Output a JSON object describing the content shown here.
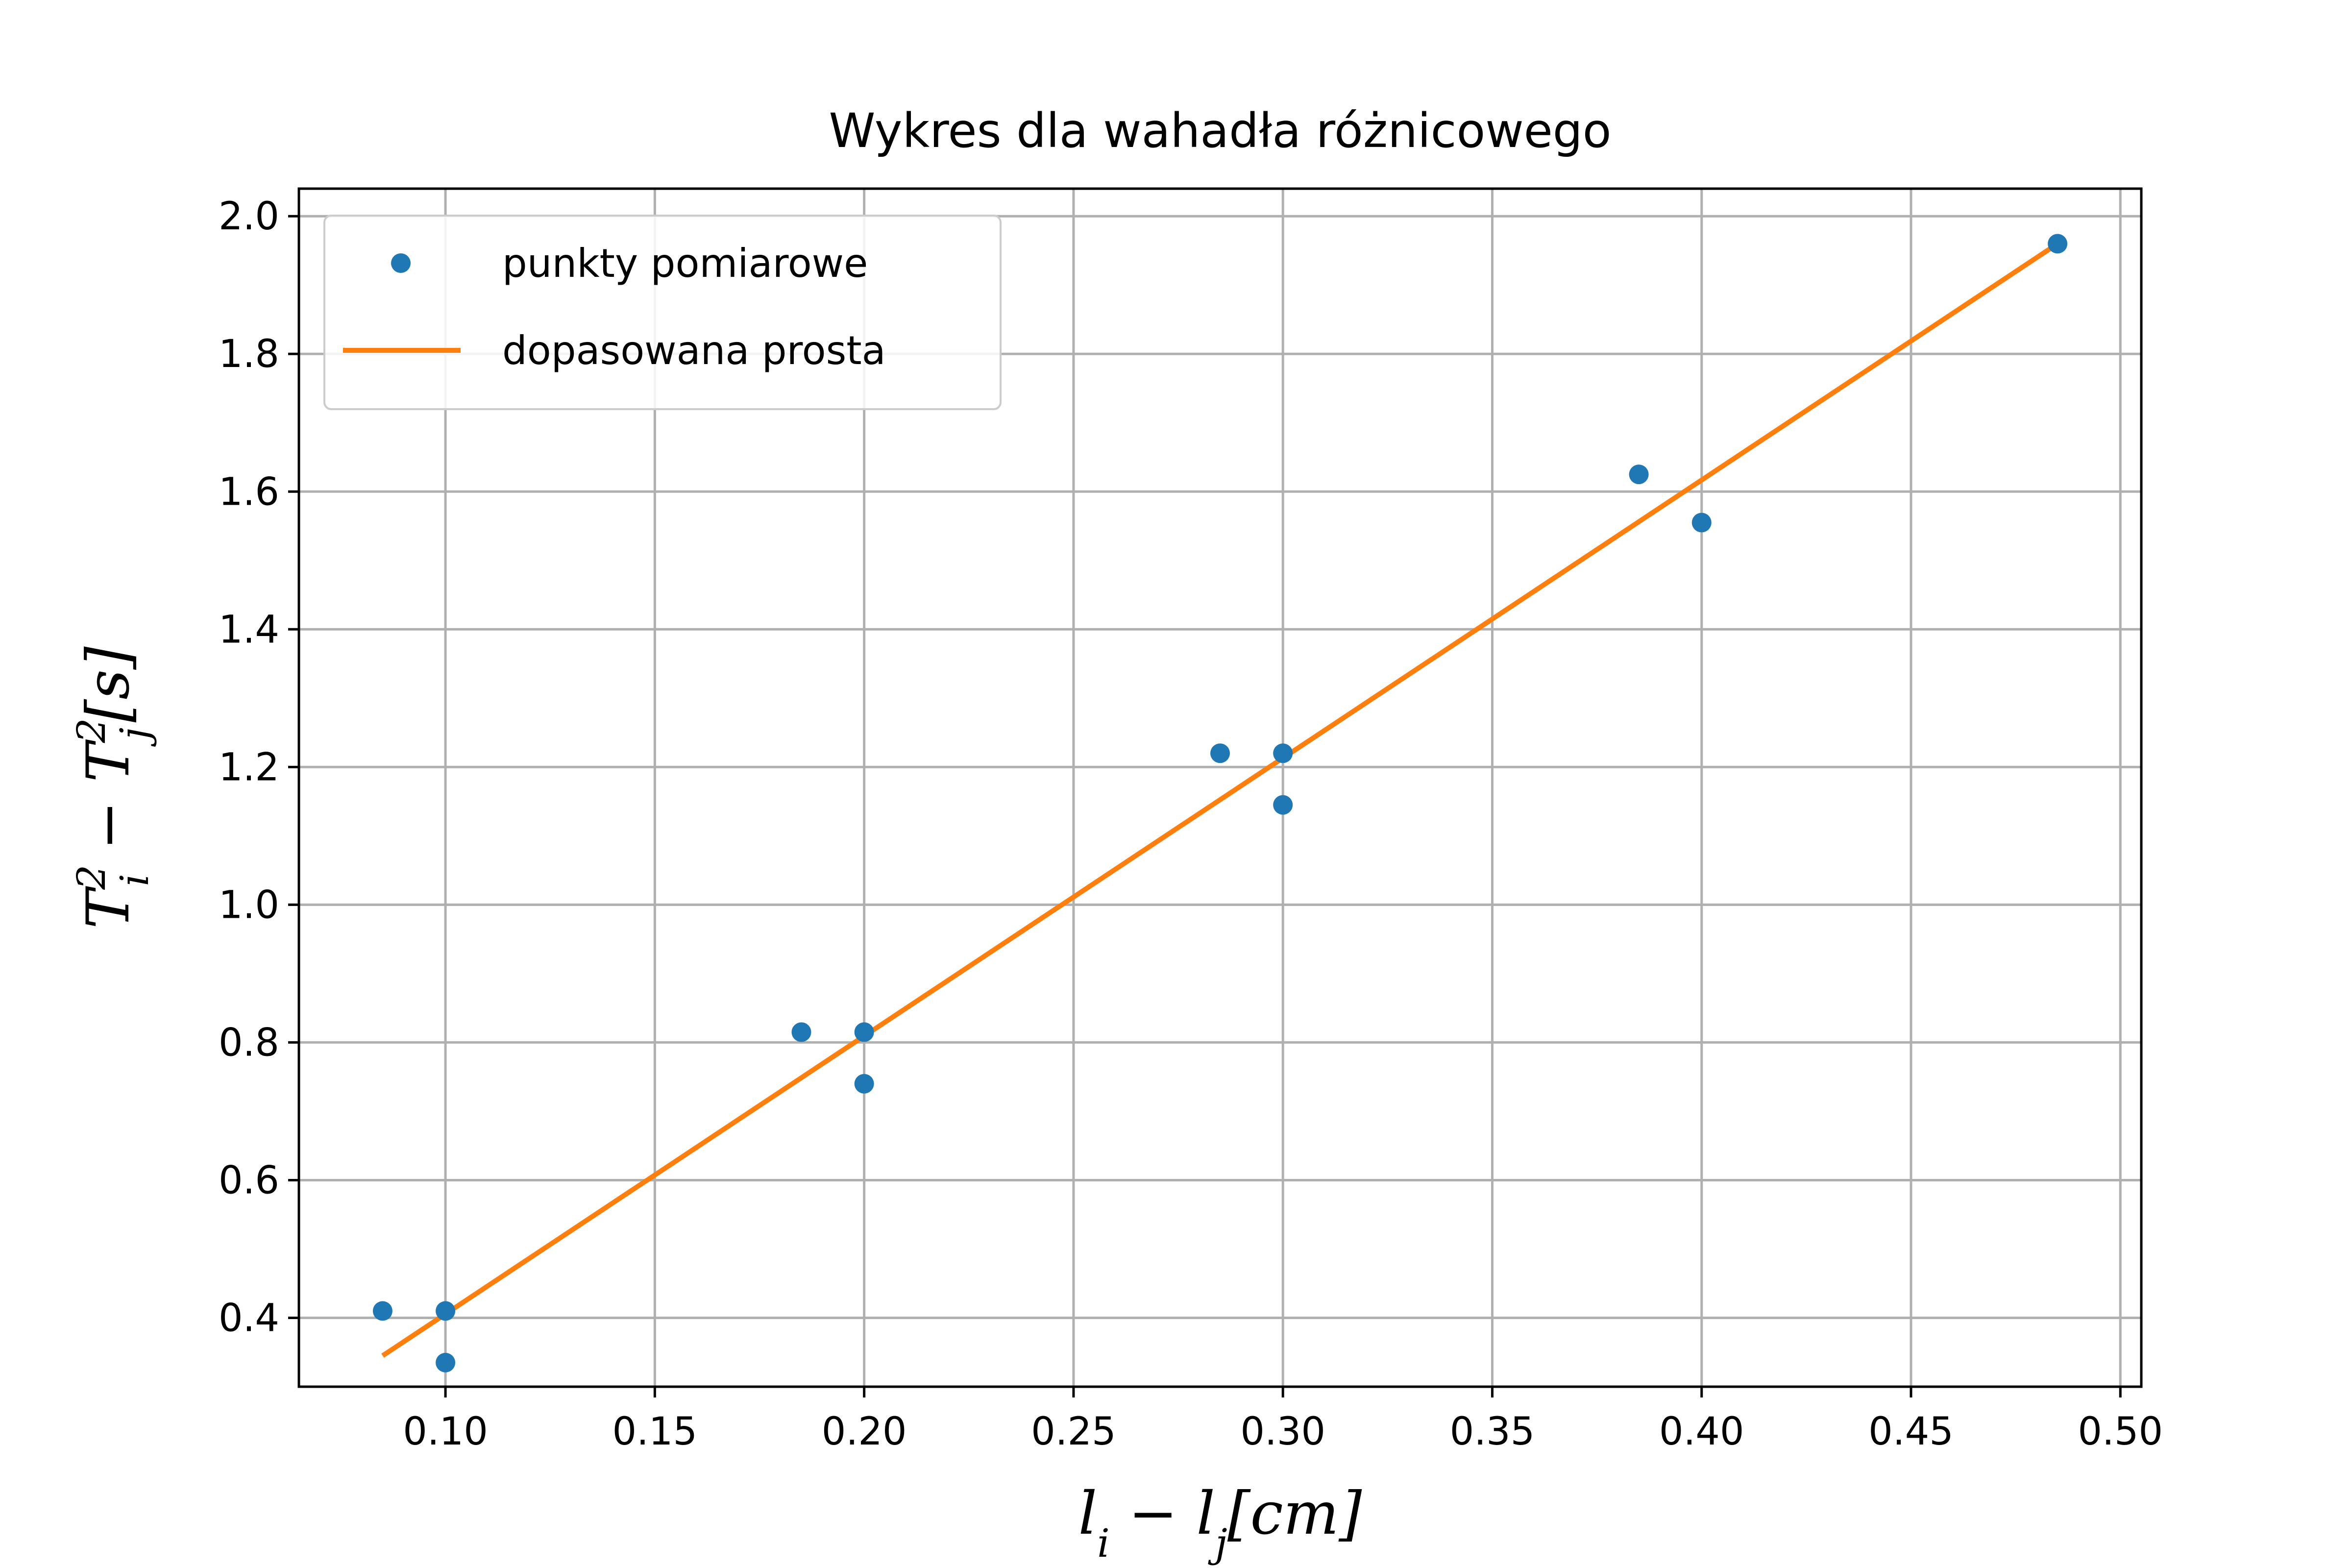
{
  "chart_data": {
    "type": "scatter",
    "title": "Wykres dla wahadła różnicowego",
    "xlabel": "l_i − l_j[cm]",
    "ylabel": "T_i² − T_j²[s]",
    "xlim": [
      0.065,
      0.505
    ],
    "ylim": [
      0.3,
      2.04
    ],
    "x_ticks": [
      "0.10",
      "0.15",
      "0.20",
      "0.25",
      "0.30",
      "0.35",
      "0.40",
      "0.45",
      "0.50"
    ],
    "y_ticks": [
      "0.4",
      "0.6",
      "0.8",
      "1.0",
      "1.2",
      "1.4",
      "1.6",
      "1.8",
      "2.0"
    ],
    "grid": true,
    "legend_position": "top-left",
    "series": [
      {
        "name": "punkty pomiarowe",
        "type": "scatter",
        "color": "#1f77b4",
        "points": [
          {
            "x": 0.085,
            "y": 0.41
          },
          {
            "x": 0.1,
            "y": 0.41
          },
          {
            "x": 0.1,
            "y": 0.335
          },
          {
            "x": 0.185,
            "y": 0.815
          },
          {
            "x": 0.2,
            "y": 0.815
          },
          {
            "x": 0.2,
            "y": 0.74
          },
          {
            "x": 0.285,
            "y": 1.22
          },
          {
            "x": 0.3,
            "y": 1.22
          },
          {
            "x": 0.3,
            "y": 1.145
          },
          {
            "x": 0.385,
            "y": 1.625
          },
          {
            "x": 0.4,
            "y": 1.555
          },
          {
            "x": 0.485,
            "y": 1.96
          }
        ]
      },
      {
        "name": "dopasowana prosta",
        "type": "line",
        "color": "#ff7f0e",
        "points": [
          {
            "x": 0.085,
            "y": 0.345
          },
          {
            "x": 0.485,
            "y": 1.96
          }
        ]
      }
    ]
  }
}
